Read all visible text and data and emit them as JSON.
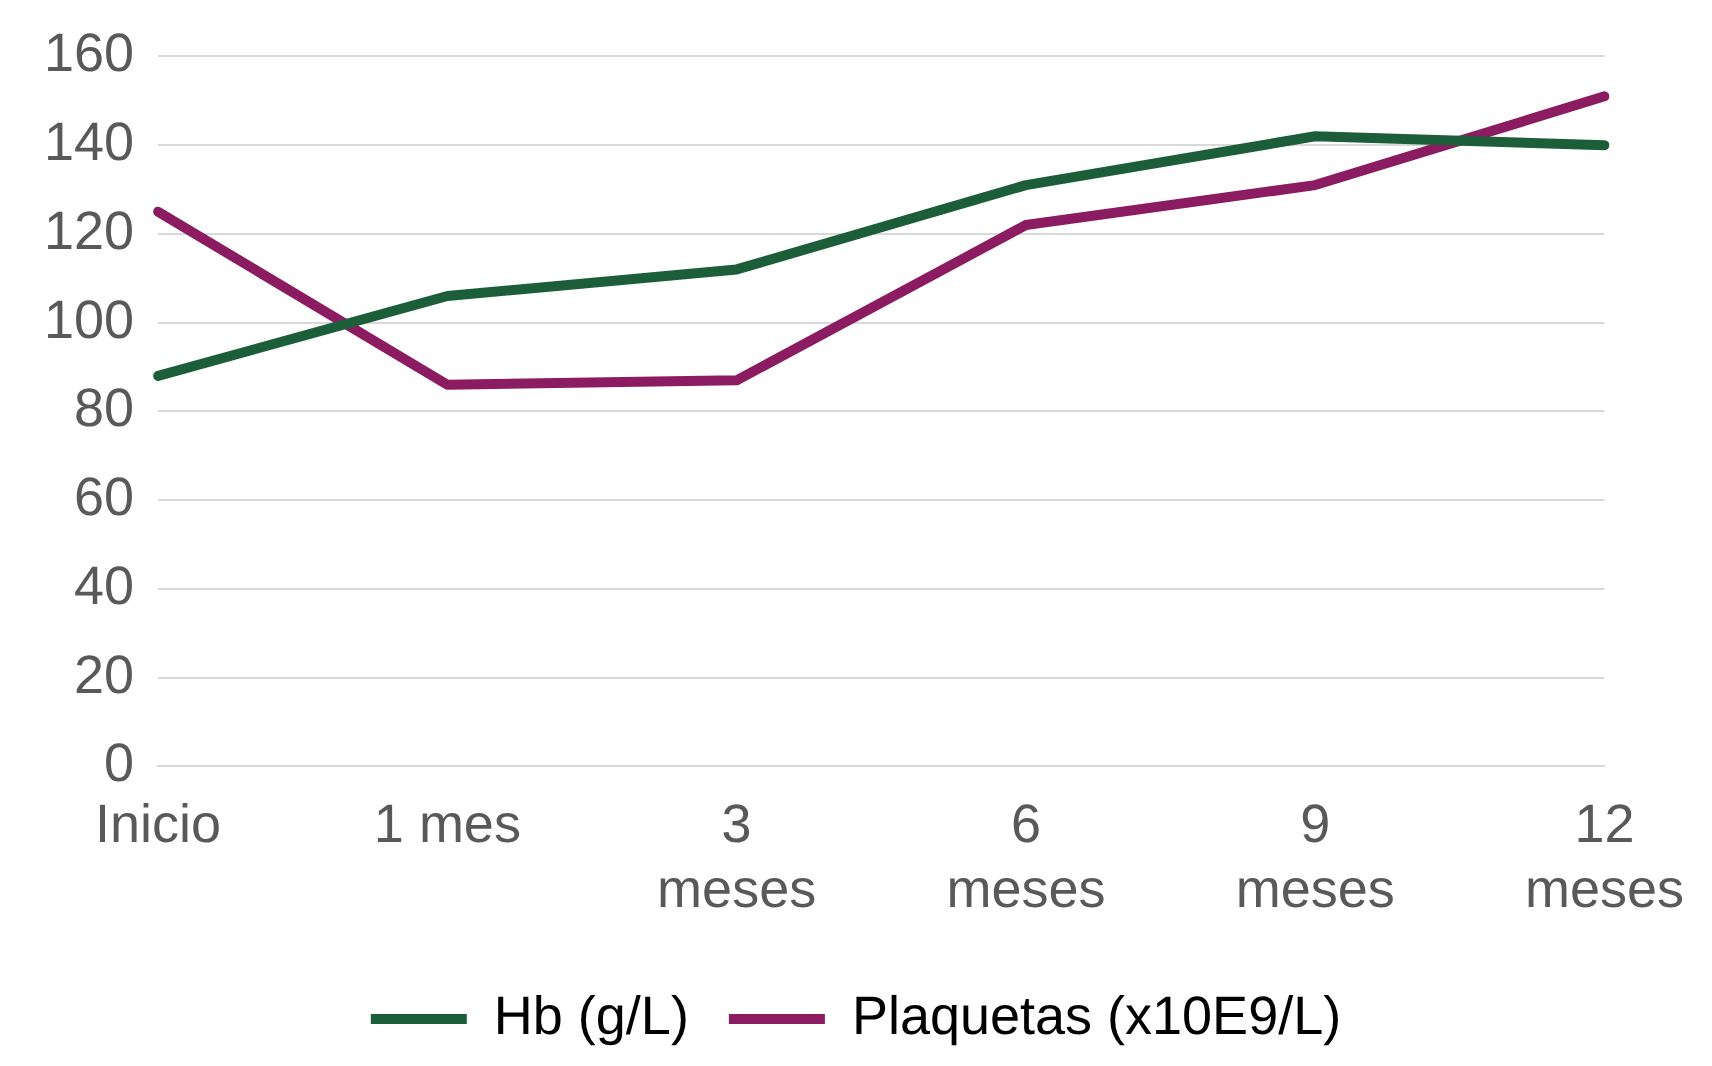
{
  "chart_data": {
    "type": "line",
    "categories": [
      "Inicio",
      "1 mes",
      "3 meses",
      "6 meses",
      "9 meses",
      "12 meses"
    ],
    "series": [
      {
        "name": "Hb (g/L)",
        "color": "#1d5e3a",
        "values": [
          88,
          106,
          112,
          131,
          142,
          140
        ]
      },
      {
        "name": "Plaquetas (x10E9/L)",
        "color": "#8c1c62",
        "values": [
          125,
          86,
          87,
          122,
          131,
          151
        ]
      }
    ],
    "ylim": [
      0,
      160
    ],
    "yticks": [
      0,
      20,
      40,
      60,
      80,
      100,
      120,
      140,
      160
    ],
    "grid": "y",
    "legend": "bottom",
    "marker": "none",
    "line_style": "solid"
  }
}
